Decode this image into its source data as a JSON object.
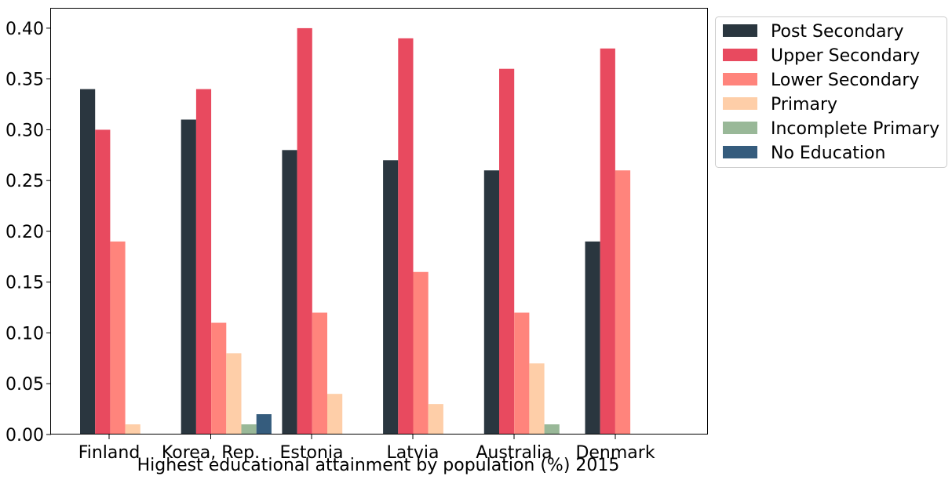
{
  "chart_data": {
    "type": "bar",
    "title": "",
    "xlabel": "Highest educational attainment by population (%) 2015",
    "ylabel": "",
    "ylim": [
      0,
      0.42
    ],
    "yticks": [
      "0.00",
      "0.05",
      "0.10",
      "0.15",
      "0.20",
      "0.25",
      "0.30",
      "0.35",
      "0.40"
    ],
    "categories": [
      "Finland",
      "Korea, Rep.",
      "Estonia",
      "Latvia",
      "Australia",
      "Denmark"
    ],
    "series": [
      {
        "name": "Post Secondary",
        "color": "#2a363f",
        "values": [
          0.34,
          0.31,
          0.28,
          0.27,
          0.26,
          0.19
        ]
      },
      {
        "name": "Upper Secondary",
        "color": "#e84a5f",
        "values": [
          0.3,
          0.34,
          0.4,
          0.39,
          0.36,
          0.38
        ]
      },
      {
        "name": "Lower Secondary",
        "color": "#ff847c",
        "values": [
          0.19,
          0.11,
          0.12,
          0.16,
          0.12,
          0.26
        ]
      },
      {
        "name": "Primary",
        "color": "#fecea8",
        "values": [
          0.01,
          0.08,
          0.04,
          0.03,
          0.07,
          0.0
        ]
      },
      {
        "name": "Incomplete Primary",
        "color": "#99b898",
        "values": [
          0.0,
          0.01,
          0.0,
          0.0,
          0.01,
          0.0
        ]
      },
      {
        "name": "No Education",
        "color": "#355c7d",
        "values": [
          0.0,
          0.02,
          0.0,
          0.0,
          0.0,
          0.0
        ]
      }
    ],
    "grid": false,
    "legend_position": "outside-upper-right"
  }
}
